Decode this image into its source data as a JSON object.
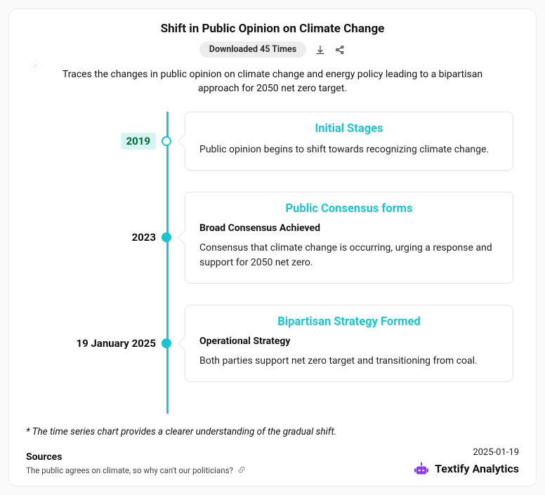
{
  "title": "Shift in Public Opinion on Climate Change",
  "download_badge": "Downloaded 45 Times",
  "description": "Traces the changes in public opinion on climate change and energy policy leading to a bipartisan approach for 2050 net zero target.",
  "colors": {
    "accent": "#19c5cf",
    "brand": "#8a3cf5",
    "badge_bg": "#ededed",
    "date_highlight_bg": "#d6f5f2",
    "card_border": "#e5e5e5",
    "text": "#111111",
    "background": "#ffffff"
  },
  "timeline": [
    {
      "date": "2019",
      "date_highlight": true,
      "dot_hollow": true,
      "title": "Initial Stages",
      "subtitle": "",
      "body": "Public opinion begins to shift towards recognizing climate change."
    },
    {
      "date": "2023",
      "date_highlight": false,
      "dot_hollow": false,
      "title": "Public Consensus forms",
      "subtitle": "Broad Consensus Achieved",
      "body": "Consensus that climate change is occurring, urging a response and support for 2050 net zero."
    },
    {
      "date": "19 January 2025",
      "date_highlight": false,
      "dot_hollow": false,
      "title": "Bipartisan Strategy Formed",
      "subtitle": "Operational Strategy",
      "body": "Both parties support net zero target and transitioning from coal."
    }
  ],
  "footnote": "* The time series chart provides a clearer understanding of the gradual shift.",
  "sources": {
    "heading": "Sources",
    "items": [
      "The public agrees on climate, so why can't our politicians?"
    ]
  },
  "datestamp": "2025-01-19",
  "brand": "Textify Analytics"
}
